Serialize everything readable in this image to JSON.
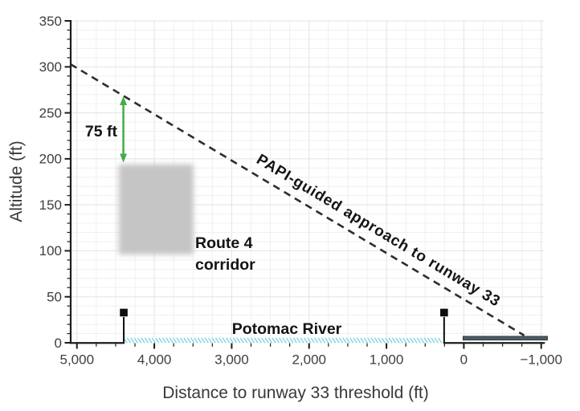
{
  "figure": {
    "background": "#ffffff"
  },
  "axes": {
    "x": {
      "title": "Distance to runway 33 threshold (ft)",
      "reversed": true,
      "minor_step": 250,
      "ticks": [
        {
          "value": 5000,
          "label": "5,000"
        },
        {
          "value": 4000,
          "label": "4,000"
        },
        {
          "value": 3000,
          "label": "3,000"
        },
        {
          "value": 2000,
          "label": "2,000"
        },
        {
          "value": 1000,
          "label": "1,000"
        },
        {
          "value": 0,
          "label": "0"
        },
        {
          "value": -1000,
          "label": "−1,000"
        }
      ]
    },
    "y": {
      "title": "Altitude (ft)",
      "minor_step": 10,
      "ticks": [
        {
          "value": 0,
          "label": "0"
        },
        {
          "value": 50,
          "label": "50"
        },
        {
          "value": 100,
          "label": "100"
        },
        {
          "value": 150,
          "label": "150"
        },
        {
          "value": 200,
          "label": "200"
        },
        {
          "value": 250,
          "label": "250"
        },
        {
          "value": 300,
          "label": "300"
        },
        {
          "value": 350,
          "label": "350"
        }
      ]
    }
  },
  "annotations": {
    "gap": {
      "label": "75 ft"
    },
    "corridor": {
      "line1": "Route 4",
      "line2": "corridor"
    },
    "river": {
      "label": "Potomac River"
    },
    "approach": {
      "label": "PAPI-guided approach to runway 33"
    }
  },
  "colors": {
    "approach_line": "#2d2d2d",
    "grid_minor": "#f0f0f0",
    "grid_major": "#e3e3e3",
    "spine": "#1c1c1c",
    "corridor_fill": "#c5c5c5",
    "river_hatch": "#7fd3e7",
    "runway_fill": "#4d5c64",
    "runway_stroke": "#303c43",
    "marker": "#0d0d0d",
    "arrow_green": "#43ac4a"
  },
  "chart_data": {
    "type": "line",
    "title": "",
    "xlabel": "Distance to runway 33 threshold (ft)",
    "ylabel": "Altitude (ft)",
    "xlim": [
      5100,
      -1100
    ],
    "ylim": [
      0,
      350
    ],
    "x_axis_reversed": true,
    "grid": {
      "x_step_ft": 250,
      "y_step_ft": 10,
      "on": true
    },
    "series": [
      {
        "name": "PAPI-guided approach to runway 33",
        "style": "dashed",
        "glide_slope_deg": 3,
        "x": [
          5085,
          -780
        ],
        "y": [
          303,
          8
        ]
      }
    ],
    "shapes": [
      {
        "name": "route4-corridor",
        "type": "blurred-rect",
        "x": [
          4460,
          3495
        ],
        "alt": [
          96,
          194
        ]
      },
      {
        "name": "potomac-river",
        "type": "hatched-band",
        "x": [
          4395,
          255
        ],
        "alt": [
          0,
          5
        ]
      },
      {
        "name": "runway",
        "type": "rect",
        "x": [
          10,
          -1080
        ],
        "alt": [
          3,
          7
        ]
      },
      {
        "name": "obstacle-marker-1",
        "type": "pole-marker",
        "x": 4395,
        "alt_top": 37
      },
      {
        "name": "obstacle-marker-2",
        "type": "pole-marker",
        "x": 255,
        "alt_top": 37
      },
      {
        "name": "altitude-gap-arrow",
        "type": "double-arrow",
        "x": 4400,
        "alt": [
          196,
          268
        ],
        "label": "75 ft"
      }
    ]
  }
}
